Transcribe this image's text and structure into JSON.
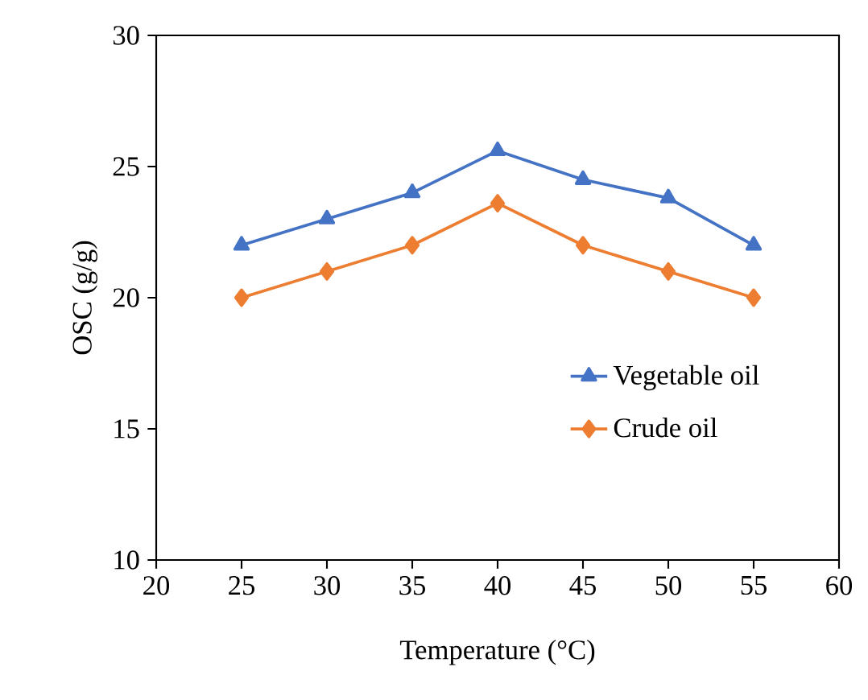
{
  "chart_data": {
    "type": "line",
    "xlabel": "Temperature (°C)",
    "ylabel": "OSC (g/g)",
    "x": [
      25,
      30,
      35,
      40,
      45,
      50,
      55
    ],
    "series": [
      {
        "name": "Vegetable oil",
        "color": "#4472c4",
        "marker": "triangle",
        "values": [
          22,
          23,
          24,
          25.6,
          24.5,
          23.8,
          22
        ]
      },
      {
        "name": "Crude oil",
        "color": "#ed7d31",
        "marker": "diamond",
        "values": [
          20,
          21,
          22,
          23.6,
          22,
          21,
          20
        ]
      }
    ],
    "xlim": [
      20,
      60
    ],
    "xticks": [
      20,
      25,
      30,
      35,
      40,
      45,
      50,
      55,
      60
    ],
    "ylim": [
      10,
      30
    ],
    "yticks": [
      10,
      15,
      20,
      25,
      30
    ],
    "grid": false,
    "legend": "right",
    "line_style": "solid"
  }
}
